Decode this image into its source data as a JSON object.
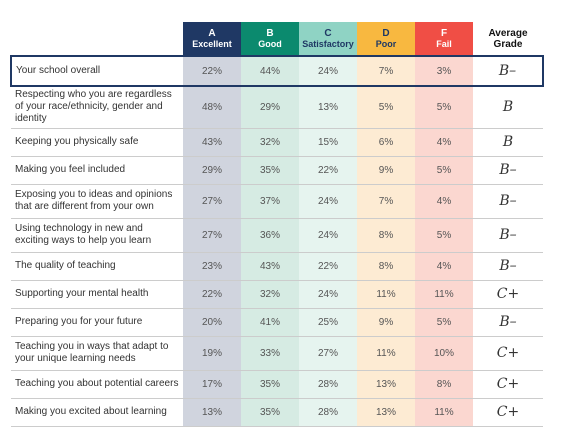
{
  "table": {
    "header": [
      {
        "letter": "A",
        "label": "Excellent"
      },
      {
        "letter": "B",
        "label": "Good"
      },
      {
        "letter": "C",
        "label": "Satisfactory"
      },
      {
        "letter": "D",
        "label": "Poor"
      },
      {
        "letter": "F",
        "label": "Fail"
      }
    ],
    "grade_header": "Average Grade",
    "rows": [
      {
        "label": "Your school overall",
        "cells": [
          "22%",
          "44%",
          "24%",
          "7%",
          "3%"
        ],
        "grade": "B–"
      },
      {
        "label": "Respecting who you are regardless of your race/ethnicity, gender and identity",
        "cells": [
          "48%",
          "29%",
          "13%",
          "5%",
          "5%"
        ],
        "grade": "B"
      },
      {
        "label": "Keeping you physically safe",
        "cells": [
          "43%",
          "32%",
          "15%",
          "6%",
          "4%"
        ],
        "grade": "B"
      },
      {
        "label": "Making you feel included",
        "cells": [
          "29%",
          "35%",
          "22%",
          "9%",
          "5%"
        ],
        "grade": "B–"
      },
      {
        "label": "Exposing you to ideas and opinions that are different from your own",
        "cells": [
          "27%",
          "37%",
          "24%",
          "7%",
          "4%"
        ],
        "grade": "B–"
      },
      {
        "label": "Using technology in new and exciting ways to help you learn",
        "cells": [
          "27%",
          "36%",
          "24%",
          "8%",
          "5%"
        ],
        "grade": "B–"
      },
      {
        "label": "The quality of teaching",
        "cells": [
          "23%",
          "43%",
          "22%",
          "8%",
          "4%"
        ],
        "grade": "B–"
      },
      {
        "label": "Supporting your mental health",
        "cells": [
          "22%",
          "32%",
          "24%",
          "11%",
          "11%"
        ],
        "grade": "C+"
      },
      {
        "label": "Preparing you for your future",
        "cells": [
          "20%",
          "41%",
          "25%",
          "9%",
          "5%"
        ],
        "grade": "B–"
      },
      {
        "label": "Teaching you in ways that adapt to your unique learning needs",
        "cells": [
          "19%",
          "33%",
          "27%",
          "11%",
          "10%"
        ],
        "grade": "C+"
      },
      {
        "label": "Teaching you about potential careers",
        "cells": [
          "17%",
          "35%",
          "28%",
          "13%",
          "8%"
        ],
        "grade": "C+"
      },
      {
        "label": "Making you excited about learning",
        "cells": [
          "13%",
          "35%",
          "28%",
          "13%",
          "11%"
        ],
        "grade": "C+"
      }
    ]
  }
}
